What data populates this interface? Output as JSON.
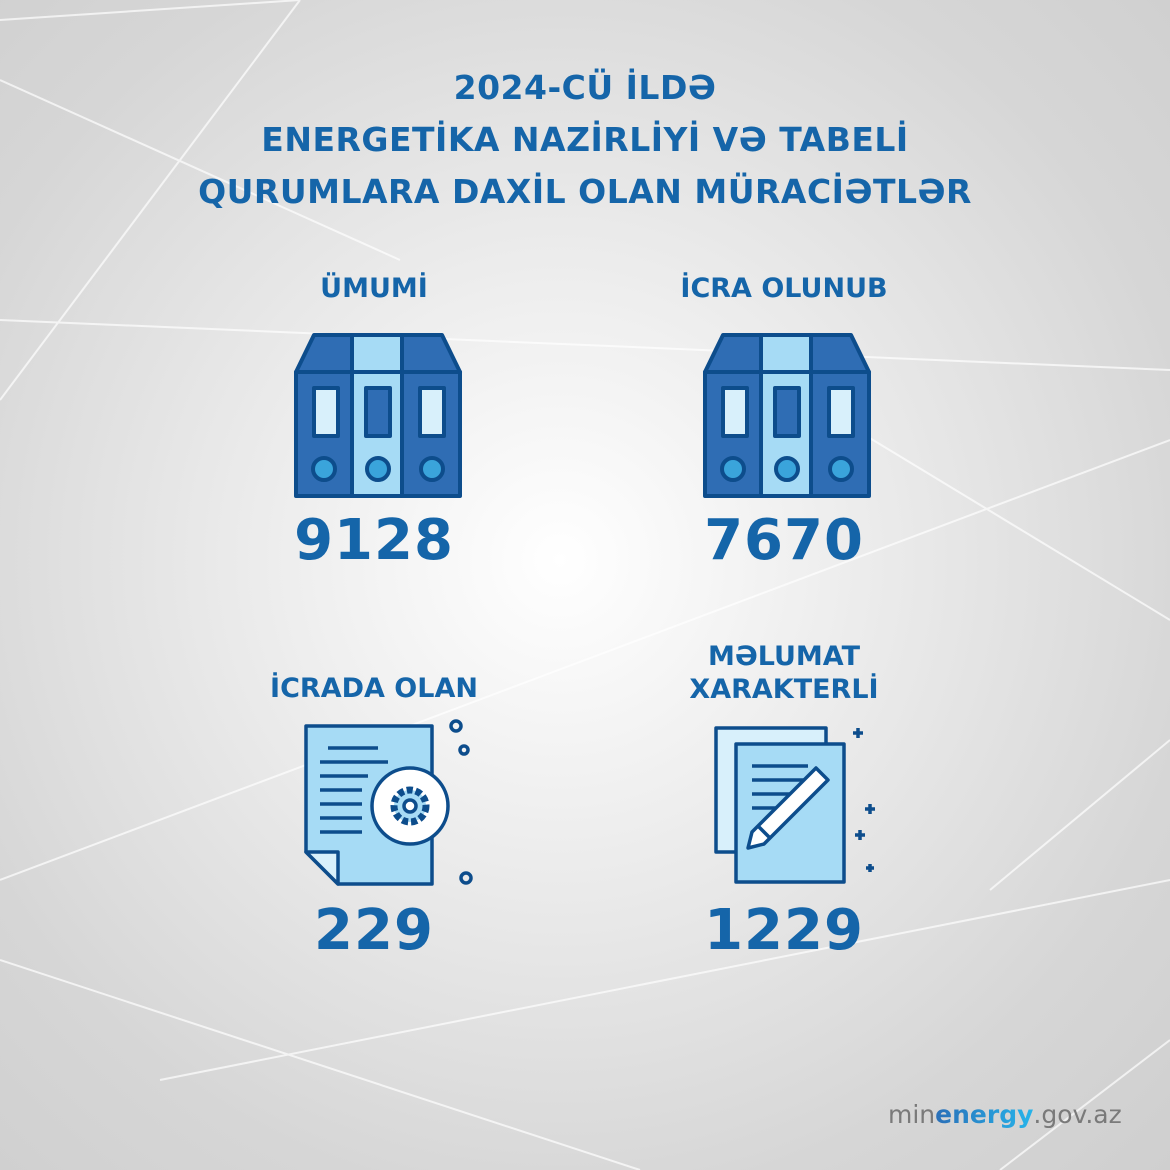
{
  "title": {
    "line1": "2024-CÜ İLDƏ",
    "line2": "ENERGETİKA NAZİRLİYİ VƏ TABELİ",
    "line3": "QURUMLARA DAXİL OLAN MÜRACİƏTLƏR"
  },
  "stats": [
    {
      "label": "ÜMUMİ",
      "value": "9128",
      "icon": "binders-icon"
    },
    {
      "label": "İCRA OLUNUB",
      "value": "7670",
      "icon": "binders-icon"
    },
    {
      "label": "İCRADA OLAN",
      "value": "229",
      "icon": "document-gear-icon"
    },
    {
      "label_line1": "MƏLUMAT",
      "label_line2": "XARAKTERLİ",
      "value": "1229",
      "icon": "document-pen-icon"
    }
  ],
  "footer": {
    "prefix": "min",
    "highlight": "energy",
    "suffix": ".gov.az"
  },
  "colors": {
    "primary": "#1565a9",
    "binder_dark": "#2f6db4",
    "binder_light": "#a6dbf5",
    "outline": "#0d4d8c"
  }
}
